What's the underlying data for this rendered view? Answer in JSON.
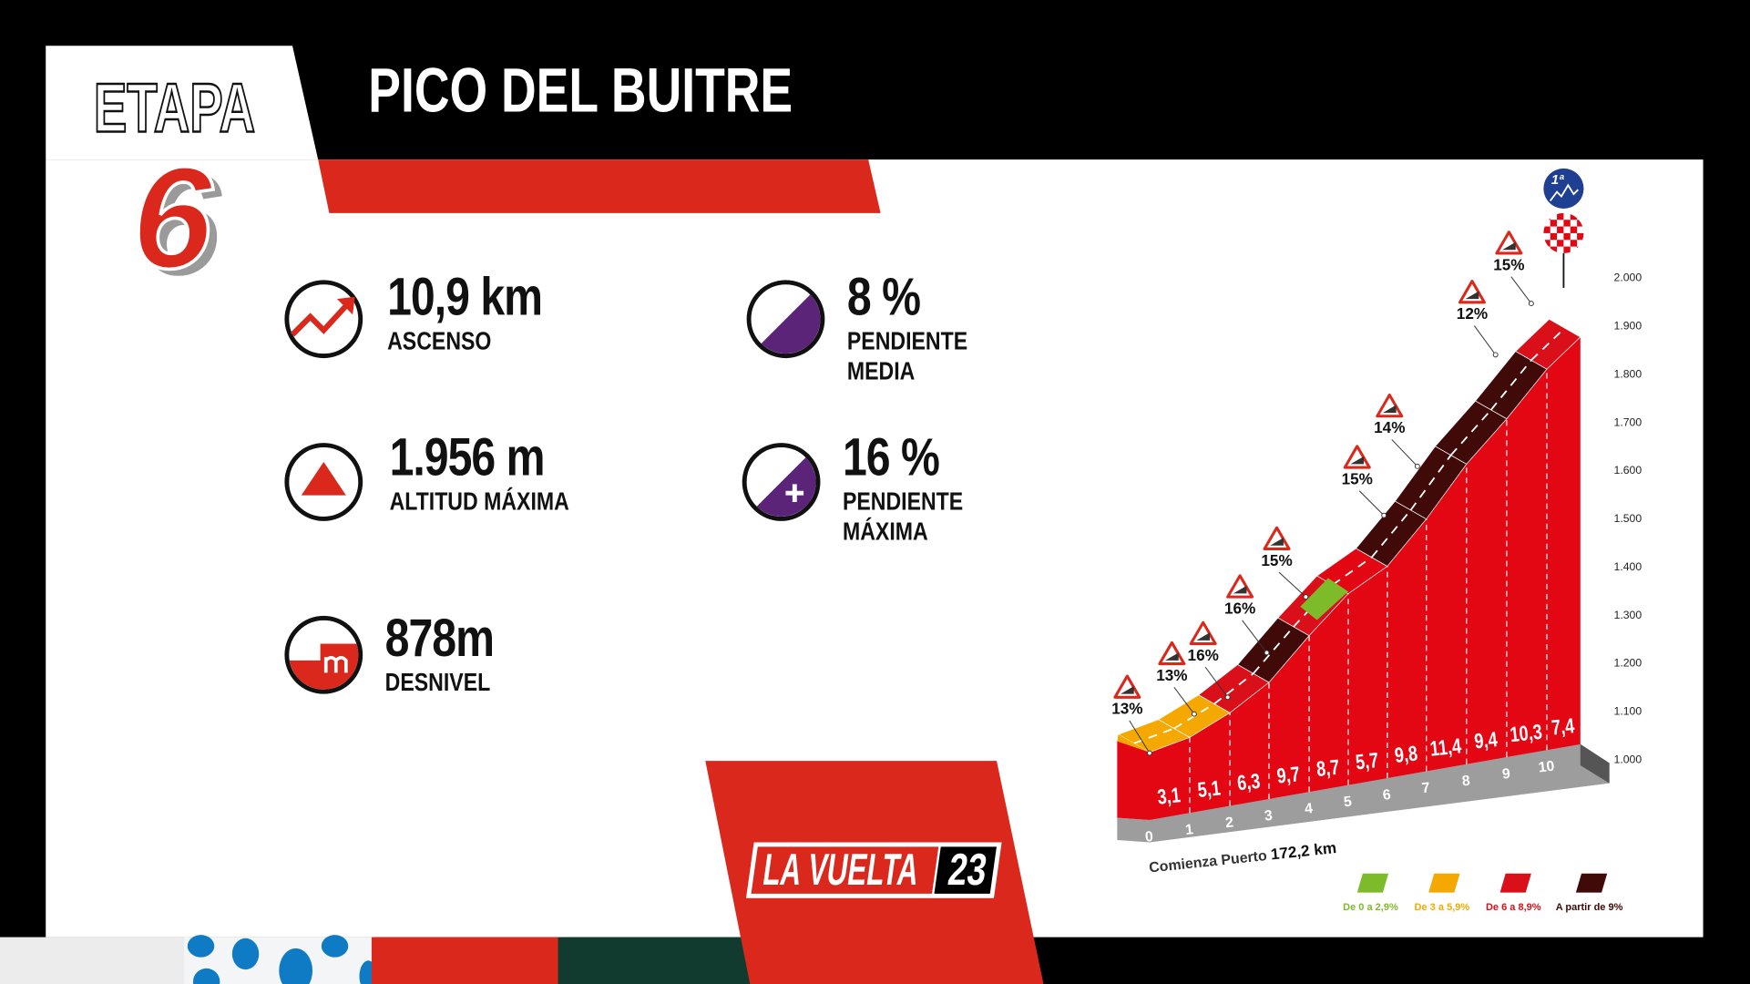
{
  "header": {
    "stage_word": "ETAPA",
    "stage_number": "6",
    "title": "PICO DEL BUITRE"
  },
  "stats": [
    {
      "icon": "trend-up-icon",
      "value": "10,9 km",
      "label": "ASCENSO"
    },
    {
      "icon": "mountain-triangle-icon",
      "value": "1.956 m",
      "label": "ALTITUD MÁXIMA"
    },
    {
      "icon": "elevation-gain-icon",
      "value": "878m",
      "label": "DESNIVEL"
    },
    {
      "icon": "gradient-icon",
      "value": "8 %",
      "label": "PENDIENTE MEDIA"
    },
    {
      "icon": "gradient-plus-icon",
      "value": "16 %",
      "label": "PENDIENTE MÁXIMA"
    }
  ],
  "logo": {
    "text": "LA VUELTA",
    "year": "23"
  },
  "chart_data": {
    "type": "area",
    "km_ticks": [
      "0",
      "1",
      "2",
      "3",
      "4",
      "5",
      "6",
      "7",
      "8",
      "9",
      "10"
    ],
    "segment_gradients": [
      "3,1",
      "5,1",
      "6,3",
      "9,7",
      "8,7",
      "5,7",
      "9,8",
      "11,4",
      "9,4",
      "10,3",
      "7,4"
    ],
    "segment_gradient_values": [
      3.1,
      5.1,
      6.3,
      9.7,
      8.7,
      5.7,
      9.8,
      11.4,
      9.4,
      10.3,
      7.4
    ],
    "altitude_ticks": [
      "1.000",
      "1.100",
      "1.200",
      "1.300",
      "1.400",
      "1.500",
      "1.600",
      "1.700",
      "1.800",
      "1.900",
      "2.000"
    ],
    "ylim": [
      1000,
      2000
    ],
    "start_label": "Comienza Puerto",
    "start_km": "172,2 km",
    "ramp_markers": [
      "13%",
      "13%",
      "16%",
      "16%",
      "15%",
      "15%",
      "14%",
      "12%",
      "15%"
    ],
    "summit_category": "1ª",
    "legend": [
      {
        "label": "De 0 a 2,9%",
        "color": "#7dbb2a"
      },
      {
        "label": "De 3 a 5,9%",
        "color": "#f5a800"
      },
      {
        "label": "De 6 a 8,9%",
        "color": "#d9101a"
      },
      {
        "label": "A partir de 9%",
        "color": "#3f0a07"
      }
    ]
  },
  "colors": {
    "red": "#da291c",
    "black": "#000000",
    "purple": "#5b2479",
    "blue": "#1f3f93",
    "dark_green": "#113b2f"
  }
}
